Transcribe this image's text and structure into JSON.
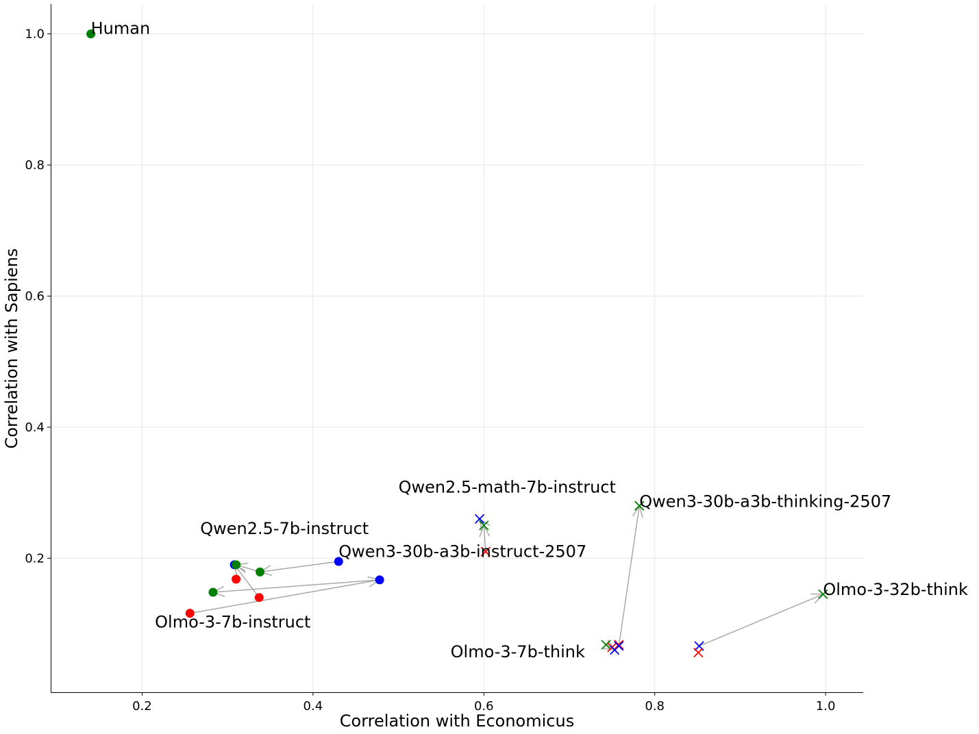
{
  "chart_data": {
    "type": "scatter",
    "title": "",
    "xlabel": "Correlation with Economicus",
    "ylabel": "Correlation with Sapiens",
    "xlim": [
      0.093,
      1.044
    ],
    "ylim": [
      -0.0045,
      1.0455
    ],
    "xticks": [
      0.2,
      0.4,
      0.6,
      0.8,
      1.0
    ],
    "xtick_labels": [
      "0.2",
      "0.4",
      "0.6",
      "0.8",
      "1.0"
    ],
    "yticks": [
      0.2,
      0.4,
      0.6,
      0.8,
      1.0
    ],
    "ytick_labels": [
      "0.2",
      "0.4",
      "0.6",
      "0.8",
      "1.0"
    ],
    "grid": true,
    "colors": {
      "green": "#008000",
      "blue": "#0000ff",
      "red": "#ff0000",
      "arrow": "#a8a8a8"
    },
    "points": [
      {
        "x": 0.14,
        "y": 1.0,
        "color": "green",
        "marker": "circle"
      },
      {
        "x": 0.308,
        "y": 0.19,
        "color": "blue",
        "marker": "circle"
      },
      {
        "x": 0.31,
        "y": 0.19,
        "color": "green",
        "marker": "circle"
      },
      {
        "x": 0.31,
        "y": 0.168,
        "color": "red",
        "marker": "circle"
      },
      {
        "x": 0.338,
        "y": 0.179,
        "color": "green",
        "marker": "circle"
      },
      {
        "x": 0.43,
        "y": 0.195,
        "color": "blue",
        "marker": "circle"
      },
      {
        "x": 0.283,
        "y": 0.148,
        "color": "green",
        "marker": "circle"
      },
      {
        "x": 0.337,
        "y": 0.14,
        "color": "red",
        "marker": "circle"
      },
      {
        "x": 0.478,
        "y": 0.167,
        "color": "blue",
        "marker": "circle"
      },
      {
        "x": 0.256,
        "y": 0.116,
        "color": "red",
        "marker": "circle"
      },
      {
        "x": 0.595,
        "y": 0.26,
        "color": "blue",
        "marker": "x"
      },
      {
        "x": 0.6,
        "y": 0.25,
        "color": "green",
        "marker": "x"
      },
      {
        "x": 0.602,
        "y": 0.21,
        "color": "red",
        "marker": "x"
      },
      {
        "x": 0.782,
        "y": 0.28,
        "color": "green",
        "marker": "x"
      },
      {
        "x": 0.743,
        "y": 0.068,
        "color": "green",
        "marker": "x"
      },
      {
        "x": 0.75,
        "y": 0.064,
        "color": "red",
        "marker": "x"
      },
      {
        "x": 0.753,
        "y": 0.06,
        "color": "blue",
        "marker": "x"
      },
      {
        "x": 0.758,
        "y": 0.068,
        "color": "red",
        "marker": "x"
      },
      {
        "x": 0.758,
        "y": 0.066,
        "color": "blue",
        "marker": "x"
      },
      {
        "x": 0.852,
        "y": 0.066,
        "color": "blue",
        "marker": "x"
      },
      {
        "x": 0.851,
        "y": 0.056,
        "color": "red",
        "marker": "x"
      },
      {
        "x": 0.997,
        "y": 0.145,
        "color": "green",
        "marker": "x"
      }
    ],
    "arrows": [
      {
        "from": [
          0.43,
          0.195
        ],
        "to": [
          0.338,
          0.179
        ]
      },
      {
        "from": [
          0.338,
          0.179
        ],
        "to": [
          0.31,
          0.19
        ]
      },
      {
        "from": [
          0.337,
          0.14
        ],
        "to": [
          0.308,
          0.19
        ]
      },
      {
        "from": [
          0.478,
          0.167
        ],
        "to": [
          0.283,
          0.148
        ]
      },
      {
        "from": [
          0.256,
          0.116
        ],
        "to": [
          0.478,
          0.167
        ]
      },
      {
        "from": [
          0.602,
          0.21
        ],
        "to": [
          0.6,
          0.25
        ]
      },
      {
        "from": [
          0.6,
          0.25
        ],
        "to": [
          0.595,
          0.26
        ]
      },
      {
        "from": [
          0.758,
          0.066
        ],
        "to": [
          0.782,
          0.28
        ]
      },
      {
        "from": [
          0.743,
          0.068
        ],
        "to": [
          0.753,
          0.06
        ]
      },
      {
        "from": [
          0.852,
          0.066
        ],
        "to": [
          0.997,
          0.145
        ]
      }
    ],
    "labels": [
      {
        "text": "Human",
        "x": 0.14,
        "y": 1.0
      },
      {
        "text": "Qwen2.5-math-7b-instruct",
        "x": 0.5,
        "y": 0.3
      },
      {
        "text": "Qwen3-30b-a3b-thinking-2507",
        "x": 0.782,
        "y": 0.278
      },
      {
        "text": "Qwen2.5-7b-instruct",
        "x": 0.268,
        "y": 0.237
      },
      {
        "text": "Qwen3-30b-a3b-instruct-2507",
        "x": 0.43,
        "y": 0.202
      },
      {
        "text": "Olmo-3-32b-think",
        "x": 0.997,
        "y": 0.144
      },
      {
        "text": "Olmo-3-7b-instruct",
        "x": 0.215,
        "y": 0.094
      },
      {
        "text": "Olmo-3-7b-think",
        "x": 0.561,
        "y": 0.049
      }
    ]
  }
}
